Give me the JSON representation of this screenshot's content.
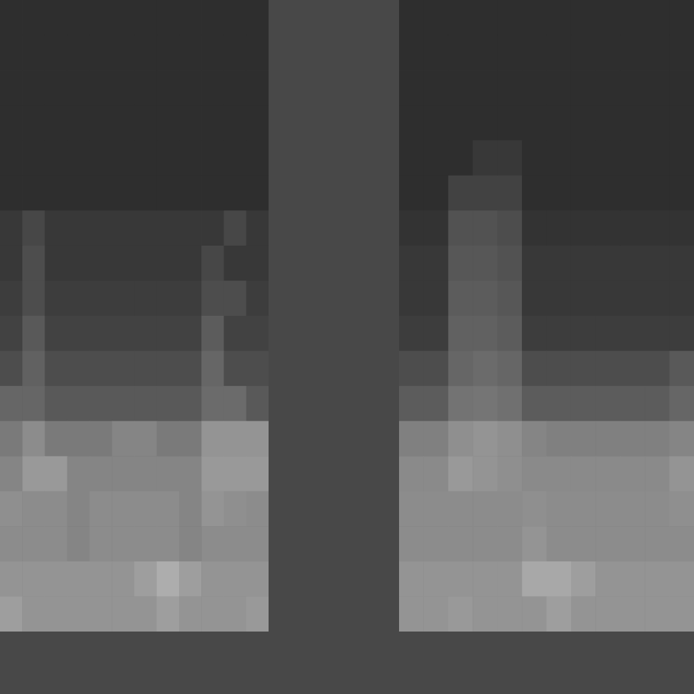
{
  "chart_data": [
    {
      "type": "heatmap",
      "tick_labels": false,
      "color_range": [
        0,
        100
      ],
      "cells": [
        [
          18,
          18,
          18,
          18,
          18,
          18,
          18,
          18,
          18,
          18,
          18,
          18
        ],
        [
          18,
          18,
          18,
          18,
          18,
          18,
          18,
          18,
          18,
          18,
          18,
          18
        ],
        [
          18,
          18,
          18,
          18,
          18,
          18,
          18,
          18,
          18,
          18,
          18,
          18
        ],
        [
          18,
          18,
          18,
          18,
          18,
          18,
          18,
          18,
          18,
          18,
          18,
          18
        ],
        [
          18,
          18,
          18,
          18,
          18,
          18,
          18,
          18,
          18,
          18,
          18,
          18
        ],
        [
          18,
          18,
          18,
          18,
          18,
          18,
          18,
          18,
          18,
          18,
          18,
          18
        ],
        [
          22,
          28,
          22,
          22,
          22,
          22,
          22,
          22,
          22,
          22,
          28,
          22
        ],
        [
          22,
          30,
          22,
          22,
          22,
          22,
          22,
          22,
          22,
          28,
          22,
          22
        ],
        [
          24,
          30,
          24,
          24,
          24,
          24,
          24,
          24,
          24,
          30,
          30,
          24
        ],
        [
          26,
          35,
          26,
          26,
          26,
          26,
          26,
          26,
          26,
          36,
          26,
          26
        ],
        [
          30,
          38,
          30,
          30,
          30,
          30,
          30,
          30,
          30,
          40,
          30,
          30
        ],
        [
          40,
          40,
          35,
          35,
          35,
          35,
          35,
          35,
          35,
          42,
          42,
          35
        ],
        [
          48,
          55,
          48,
          48,
          48,
          52,
          52,
          48,
          48,
          58,
          58,
          58
        ],
        [
          52,
          60,
          60,
          52,
          52,
          52,
          52,
          52,
          52,
          60,
          60,
          60
        ],
        [
          56,
          55,
          55,
          52,
          55,
          55,
          55,
          55,
          52,
          58,
          56,
          55
        ],
        [
          55,
          55,
          55,
          52,
          55,
          55,
          55,
          55,
          52,
          55,
          55,
          55
        ],
        [
          58,
          58,
          58,
          58,
          58,
          58,
          62,
          68,
          62,
          58,
          58,
          58
        ],
        [
          62,
          58,
          58,
          58,
          58,
          58,
          58,
          62,
          58,
          58,
          58,
          60
        ]
      ]
    },
    {
      "type": "heatmap",
      "tick_labels": false,
      "color_range": [
        0,
        100
      ],
      "cells": [
        [
          18,
          18,
          18,
          18,
          18,
          18,
          18,
          18,
          18,
          18,
          18,
          18
        ],
        [
          18,
          18,
          18,
          18,
          18,
          18,
          18,
          18,
          18,
          18,
          18,
          18
        ],
        [
          18,
          18,
          18,
          18,
          18,
          18,
          18,
          18,
          18,
          18,
          18,
          18
        ],
        [
          18,
          18,
          18,
          18,
          18,
          18,
          18,
          18,
          18,
          18,
          18,
          18
        ],
        [
          18,
          18,
          18,
          22,
          22,
          18,
          18,
          18,
          18,
          18,
          18,
          18
        ],
        [
          18,
          18,
          26,
          26,
          26,
          18,
          18,
          18,
          18,
          18,
          18,
          18
        ],
        [
          20,
          20,
          32,
          32,
          30,
          20,
          20,
          20,
          20,
          20,
          20,
          20
        ],
        [
          22,
          22,
          34,
          34,
          32,
          22,
          22,
          22,
          22,
          22,
          22,
          22
        ],
        [
          22,
          22,
          36,
          36,
          34,
          22,
          22,
          22,
          22,
          22,
          22,
          22
        ],
        [
          24,
          24,
          38,
          38,
          36,
          24,
          24,
          24,
          24,
          24,
          24,
          24
        ],
        [
          30,
          30,
          40,
          42,
          40,
          30,
          30,
          30,
          30,
          30,
          30,
          35
        ],
        [
          36,
          36,
          45,
          46,
          44,
          36,
          36,
          36,
          36,
          36,
          36,
          40
        ],
        [
          50,
          50,
          56,
          58,
          56,
          52,
          50,
          50,
          50,
          50,
          50,
          52
        ],
        [
          54,
          54,
          60,
          58,
          56,
          54,
          54,
          54,
          54,
          54,
          54,
          58
        ],
        [
          55,
          55,
          55,
          55,
          55,
          56,
          55,
          55,
          55,
          55,
          55,
          56
        ],
        [
          55,
          55,
          55,
          55,
          55,
          58,
          55,
          55,
          55,
          55,
          55,
          55
        ],
        [
          58,
          58,
          58,
          58,
          58,
          66,
          66,
          62,
          58,
          58,
          58,
          58
        ],
        [
          58,
          58,
          60,
          58,
          58,
          58,
          62,
          58,
          58,
          58,
          58,
          58
        ]
      ]
    }
  ]
}
